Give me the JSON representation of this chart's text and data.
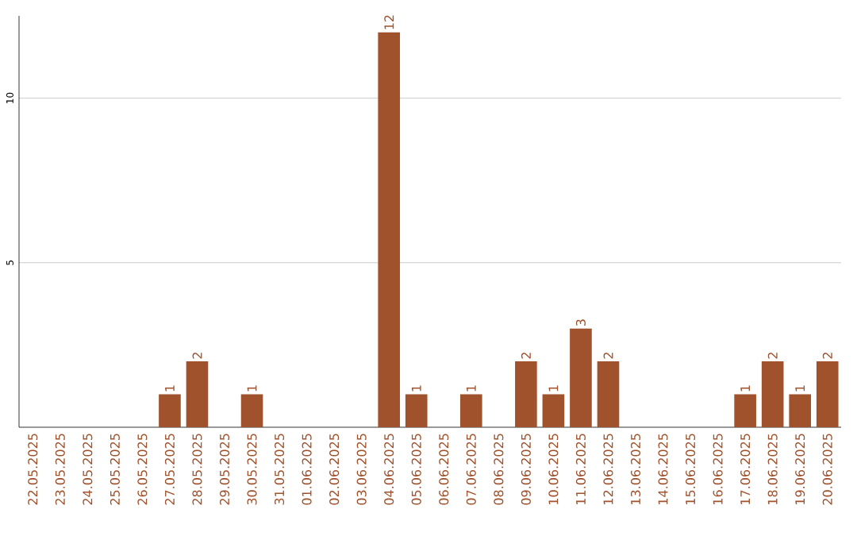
{
  "chart_data": {
    "type": "bar",
    "categories": [
      "22.05.2025",
      "23.05.2025",
      "24.05.2025",
      "25.05.2025",
      "26.05.2025",
      "27.05.2025",
      "28.05.2025",
      "29.05.2025",
      "30.05.2025",
      "31.05.2025",
      "01.06.2025",
      "02.06.2025",
      "03.06.2025",
      "04.06.2025",
      "05.06.2025",
      "06.06.2025",
      "07.06.2025",
      "08.06.2025",
      "09.06.2025",
      "10.06.2025",
      "11.06.2025",
      "12.06.2025",
      "13.06.2025",
      "14.06.2025",
      "15.06.2025",
      "16.06.2025",
      "17.06.2025",
      "18.06.2025",
      "19.06.2025",
      "20.06.2025"
    ],
    "values": [
      0,
      0,
      0,
      0,
      0,
      1,
      2,
      0,
      1,
      0,
      0,
      0,
      0,
      12,
      1,
      0,
      1,
      0,
      2,
      1,
      3,
      2,
      0,
      0,
      0,
      0,
      1,
      2,
      1,
      2
    ],
    "value_labels": [
      null,
      null,
      null,
      null,
      null,
      "1",
      "2",
      null,
      "1",
      null,
      null,
      null,
      null,
      "12",
      "1",
      null,
      "1",
      null,
      "2",
      "1",
      "3",
      "2",
      null,
      null,
      null,
      null,
      "1",
      "2",
      "1",
      "2"
    ],
    "color": "#a0522d",
    "ylim": [
      0,
      12.5
    ],
    "yticks": [
      5,
      10
    ],
    "grid": "y"
  }
}
